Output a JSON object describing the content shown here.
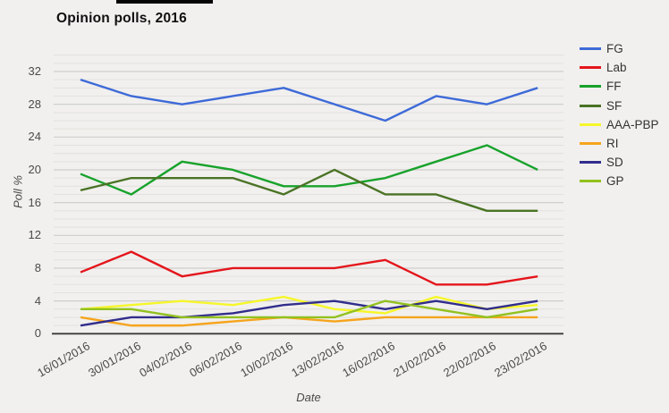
{
  "title": "Opinion polls, 2016",
  "chart_data": {
    "type": "line",
    "title": "Opinion polls, 2016",
    "xlabel": "Date",
    "ylabel": "Poll %",
    "categories": [
      "16/01/2016",
      "30/01/2016",
      "04/02/2016",
      "06/02/2016",
      "10/02/2016",
      "13/02/2016",
      "16/02/2016",
      "21/02/2016",
      "22/02/2016",
      "23/02/2016"
    ],
    "series": [
      {
        "name": "FG",
        "color": "#3e6ad8",
        "values": [
          31,
          29,
          28,
          29,
          30,
          28,
          26,
          29,
          28,
          30
        ]
      },
      {
        "name": "Lab",
        "color": "#e4151b",
        "values": [
          7.5,
          10,
          7,
          8,
          8,
          8,
          9,
          6,
          6,
          7
        ]
      },
      {
        "name": "FF",
        "color": "#18a22b",
        "values": [
          19.5,
          17,
          21,
          20,
          18,
          18,
          19,
          21,
          23,
          20
        ]
      },
      {
        "name": "SF",
        "color": "#4a7325",
        "values": [
          17.5,
          19,
          19,
          19,
          17,
          20,
          17,
          17,
          15,
          15
        ]
      },
      {
        "name": "AAA-PBP",
        "color": "#f6f62a",
        "values": [
          3,
          3.5,
          4,
          3.5,
          4.5,
          3,
          2.5,
          4.5,
          3,
          3.5
        ]
      },
      {
        "name": "RI",
        "color": "#f6a41d",
        "values": [
          2,
          1,
          1,
          1.5,
          2,
          1.5,
          2,
          2,
          2,
          2
        ]
      },
      {
        "name": "SD",
        "color": "#312d8c",
        "values": [
          1,
          2,
          2,
          2.5,
          3.5,
          4,
          3,
          4,
          3,
          4
        ]
      },
      {
        "name": "GP",
        "color": "#92c11f",
        "values": [
          3,
          3,
          2,
          2,
          2,
          2,
          4,
          3,
          2,
          3
        ]
      }
    ],
    "yticks": [
      0,
      4,
      8,
      12,
      16,
      20,
      24,
      28,
      32
    ],
    "ylim": [
      0,
      34.5
    ],
    "grid": "horizontal; minor every 1, major every 4",
    "legend_position": "right"
  }
}
